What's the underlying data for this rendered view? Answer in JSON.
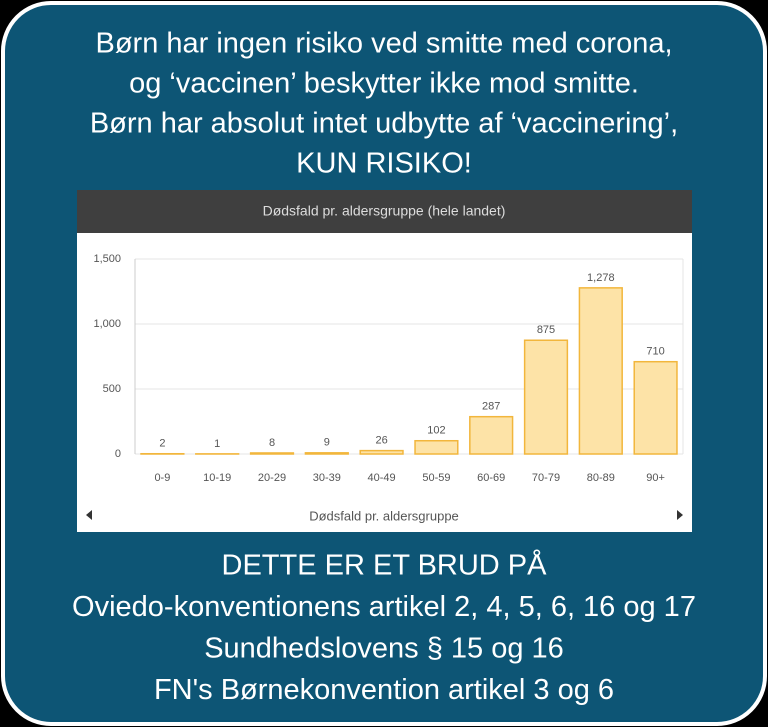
{
  "heading": [
    "Børn har ingen risiko ved smitte med corona,",
    "og ‘vaccinen’ beskytter ikke mod smitte.",
    "Børn har absolut intet udbytte af ‘vaccinering’,",
    "KUN RISIKO!"
  ],
  "footer": [
    "DETTE ER ET BRUD PÅ",
    "Oviedo-konventionens artikel 2, 4, 5, 6, 16 og 17",
    "Sundhedslovens § 15 og 16",
    "FN's Børnekonvention artikel 3 og 6"
  ],
  "chart_data": {
    "type": "bar",
    "title": "Dødsfald pr. aldersgruppe (hele landet)",
    "x_label": "Dødsfald pr. aldersgruppe",
    "categories": [
      "0-9",
      "10-19",
      "20-29",
      "30-39",
      "40-49",
      "50-59",
      "60-69",
      "70-79",
      "80-89",
      "90+"
    ],
    "values": [
      2,
      1,
      8,
      9,
      26,
      102,
      287,
      875,
      1278,
      710
    ],
    "value_labels": [
      "2",
      "1",
      "8",
      "9",
      "26",
      "102",
      "287",
      "875",
      "1,278",
      "710"
    ],
    "color": "#fde3a7",
    "edge_color": "#f2b63c",
    "ylim": [
      0,
      1500
    ],
    "yticks": [
      0,
      500,
      {
        "value": 1000,
        "label": "1,000"
      },
      {
        "value": 1500,
        "label": "1,500"
      }
    ],
    "grid": true
  }
}
